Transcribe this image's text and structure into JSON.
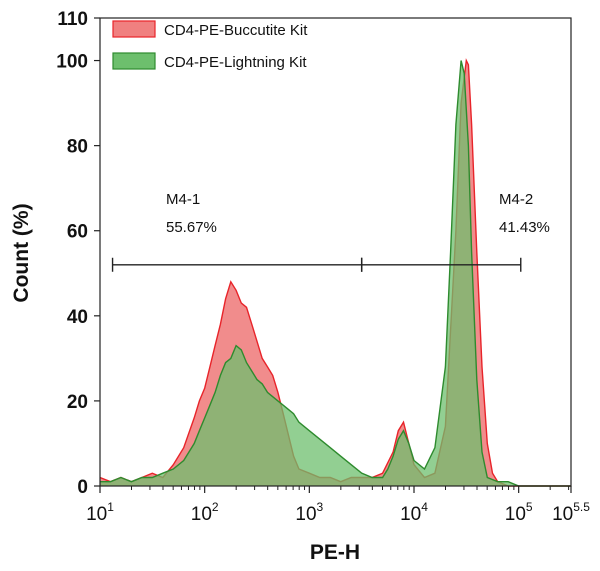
{
  "chart_data": {
    "type": "area",
    "xlabel": "PE-H",
    "ylabel": "Count (%)",
    "xscale": "log10",
    "xlim_log": [
      1,
      5.5
    ],
    "ylim": [
      0,
      110
    ],
    "yticks": [
      0,
      20,
      40,
      60,
      80,
      100,
      110
    ],
    "xticks": [
      {
        "exp": 1,
        "base": "10",
        "sup": "1"
      },
      {
        "exp": 2,
        "base": "10",
        "sup": "2"
      },
      {
        "exp": 3,
        "base": "10",
        "sup": "3"
      },
      {
        "exp": 4,
        "base": "10",
        "sup": "4"
      },
      {
        "exp": 5,
        "base": "10",
        "sup": "5"
      },
      {
        "exp": 5.5,
        "base": "10",
        "sup": "5.5"
      }
    ],
    "legend": {
      "position": "top-left"
    },
    "series": [
      {
        "name": "CD4-PE-Buccutite Kit",
        "fill": "#f08080",
        "stroke": "#e8242a",
        "points": [
          [
            1.0,
            2
          ],
          [
            1.1,
            1
          ],
          [
            1.2,
            2
          ],
          [
            1.3,
            1
          ],
          [
            1.4,
            2
          ],
          [
            1.5,
            3
          ],
          [
            1.6,
            2
          ],
          [
            1.7,
            5
          ],
          [
            1.8,
            9
          ],
          [
            1.9,
            16
          ],
          [
            1.95,
            20
          ],
          [
            2.0,
            23
          ],
          [
            2.05,
            28
          ],
          [
            2.1,
            33
          ],
          [
            2.15,
            38
          ],
          [
            2.2,
            44
          ],
          [
            2.25,
            48
          ],
          [
            2.3,
            46
          ],
          [
            2.35,
            43
          ],
          [
            2.4,
            42
          ],
          [
            2.45,
            38
          ],
          [
            2.5,
            34
          ],
          [
            2.55,
            30
          ],
          [
            2.6,
            28
          ],
          [
            2.65,
            26
          ],
          [
            2.7,
            22
          ],
          [
            2.75,
            17
          ],
          [
            2.8,
            12
          ],
          [
            2.85,
            7
          ],
          [
            2.9,
            4
          ],
          [
            3.0,
            3
          ],
          [
            3.1,
            2
          ],
          [
            3.2,
            2
          ],
          [
            3.3,
            1
          ],
          [
            3.4,
            2
          ],
          [
            3.5,
            2
          ],
          [
            3.6,
            2
          ],
          [
            3.7,
            3
          ],
          [
            3.8,
            8
          ],
          [
            3.85,
            13
          ],
          [
            3.9,
            15
          ],
          [
            3.95,
            10
          ],
          [
            4.0,
            5
          ],
          [
            4.1,
            2
          ],
          [
            4.2,
            3
          ],
          [
            4.3,
            14
          ],
          [
            4.4,
            60
          ],
          [
            4.45,
            90
          ],
          [
            4.5,
            100
          ],
          [
            4.52,
            99
          ],
          [
            4.55,
            85
          ],
          [
            4.6,
            55
          ],
          [
            4.65,
            28
          ],
          [
            4.7,
            10
          ],
          [
            4.75,
            3
          ],
          [
            4.8,
            1
          ],
          [
            4.9,
            0
          ],
          [
            5.0,
            0
          ],
          [
            5.5,
            0
          ]
        ]
      },
      {
        "name": "CD4-PE-Lightning Kit",
        "fill": "#6dbf6d",
        "stroke": "#2e8b2e",
        "points": [
          [
            1.0,
            1
          ],
          [
            1.1,
            1
          ],
          [
            1.2,
            2
          ],
          [
            1.3,
            1
          ],
          [
            1.4,
            2
          ],
          [
            1.5,
            2
          ],
          [
            1.6,
            3
          ],
          [
            1.7,
            4
          ],
          [
            1.8,
            6
          ],
          [
            1.9,
            10
          ],
          [
            1.95,
            13
          ],
          [
            2.0,
            16
          ],
          [
            2.05,
            19
          ],
          [
            2.1,
            22
          ],
          [
            2.15,
            26
          ],
          [
            2.2,
            29
          ],
          [
            2.25,
            30
          ],
          [
            2.3,
            33
          ],
          [
            2.35,
            32
          ],
          [
            2.4,
            29
          ],
          [
            2.45,
            27
          ],
          [
            2.5,
            25
          ],
          [
            2.55,
            24
          ],
          [
            2.6,
            22
          ],
          [
            2.65,
            21
          ],
          [
            2.7,
            20
          ],
          [
            2.75,
            19
          ],
          [
            2.8,
            18
          ],
          [
            2.85,
            17
          ],
          [
            2.9,
            15
          ],
          [
            3.0,
            13
          ],
          [
            3.1,
            11
          ],
          [
            3.2,
            9
          ],
          [
            3.3,
            7
          ],
          [
            3.4,
            5
          ],
          [
            3.5,
            3
          ],
          [
            3.6,
            2
          ],
          [
            3.7,
            2
          ],
          [
            3.75,
            4
          ],
          [
            3.8,
            7
          ],
          [
            3.85,
            11
          ],
          [
            3.9,
            13
          ],
          [
            3.95,
            10
          ],
          [
            4.0,
            6
          ],
          [
            4.1,
            4
          ],
          [
            4.2,
            9
          ],
          [
            4.3,
            28
          ],
          [
            4.35,
            55
          ],
          [
            4.4,
            85
          ],
          [
            4.45,
            100
          ],
          [
            4.48,
            97
          ],
          [
            4.52,
            80
          ],
          [
            4.55,
            55
          ],
          [
            4.6,
            25
          ],
          [
            4.65,
            8
          ],
          [
            4.7,
            2
          ],
          [
            4.8,
            1
          ],
          [
            4.9,
            1
          ],
          [
            5.0,
            0
          ],
          [
            5.5,
            0
          ]
        ]
      }
    ],
    "gates": [
      {
        "name": "M4-1",
        "percent": "55.67%",
        "x_start": 1.12,
        "x_end": 3.5,
        "y": 52
      },
      {
        "name": "M4-2",
        "percent": "41.43%",
        "x_start": 3.5,
        "x_end": 5.02,
        "y": 52
      }
    ]
  }
}
